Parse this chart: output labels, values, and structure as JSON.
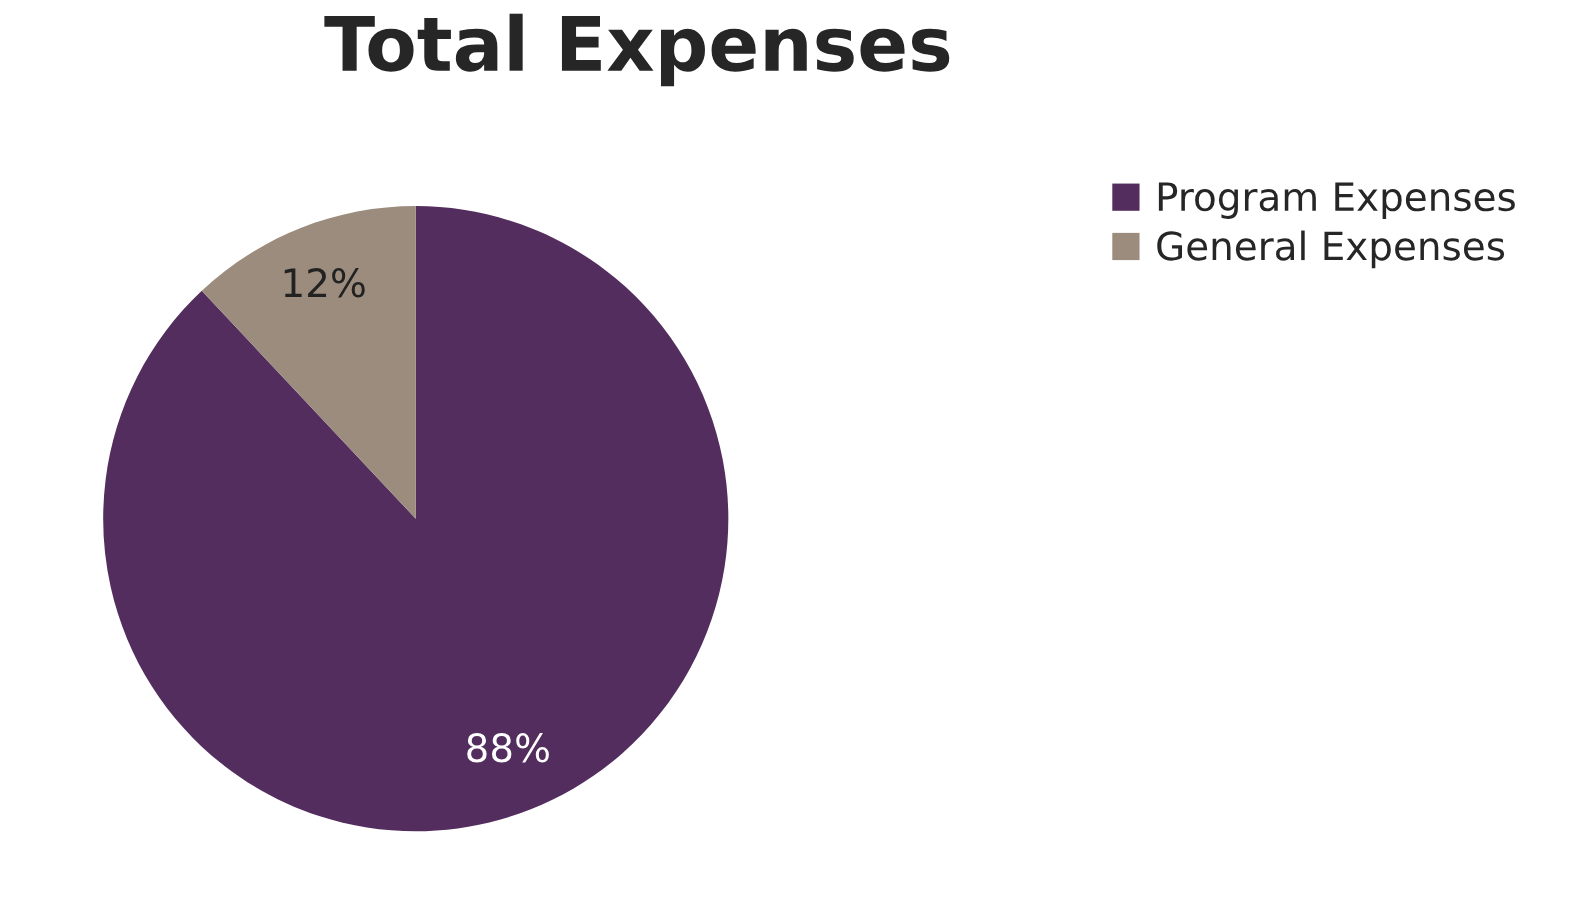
{
  "chart_data": {
    "type": "pie",
    "title": "Total Expenses",
    "categories": [
      "Program Expenses",
      "General Expenses"
    ],
    "values": [
      88,
      12
    ],
    "colors": [
      "#532d5e",
      "#9b8c7d"
    ],
    "value_labels": [
      "88%",
      "12%"
    ],
    "legend": "top right"
  }
}
